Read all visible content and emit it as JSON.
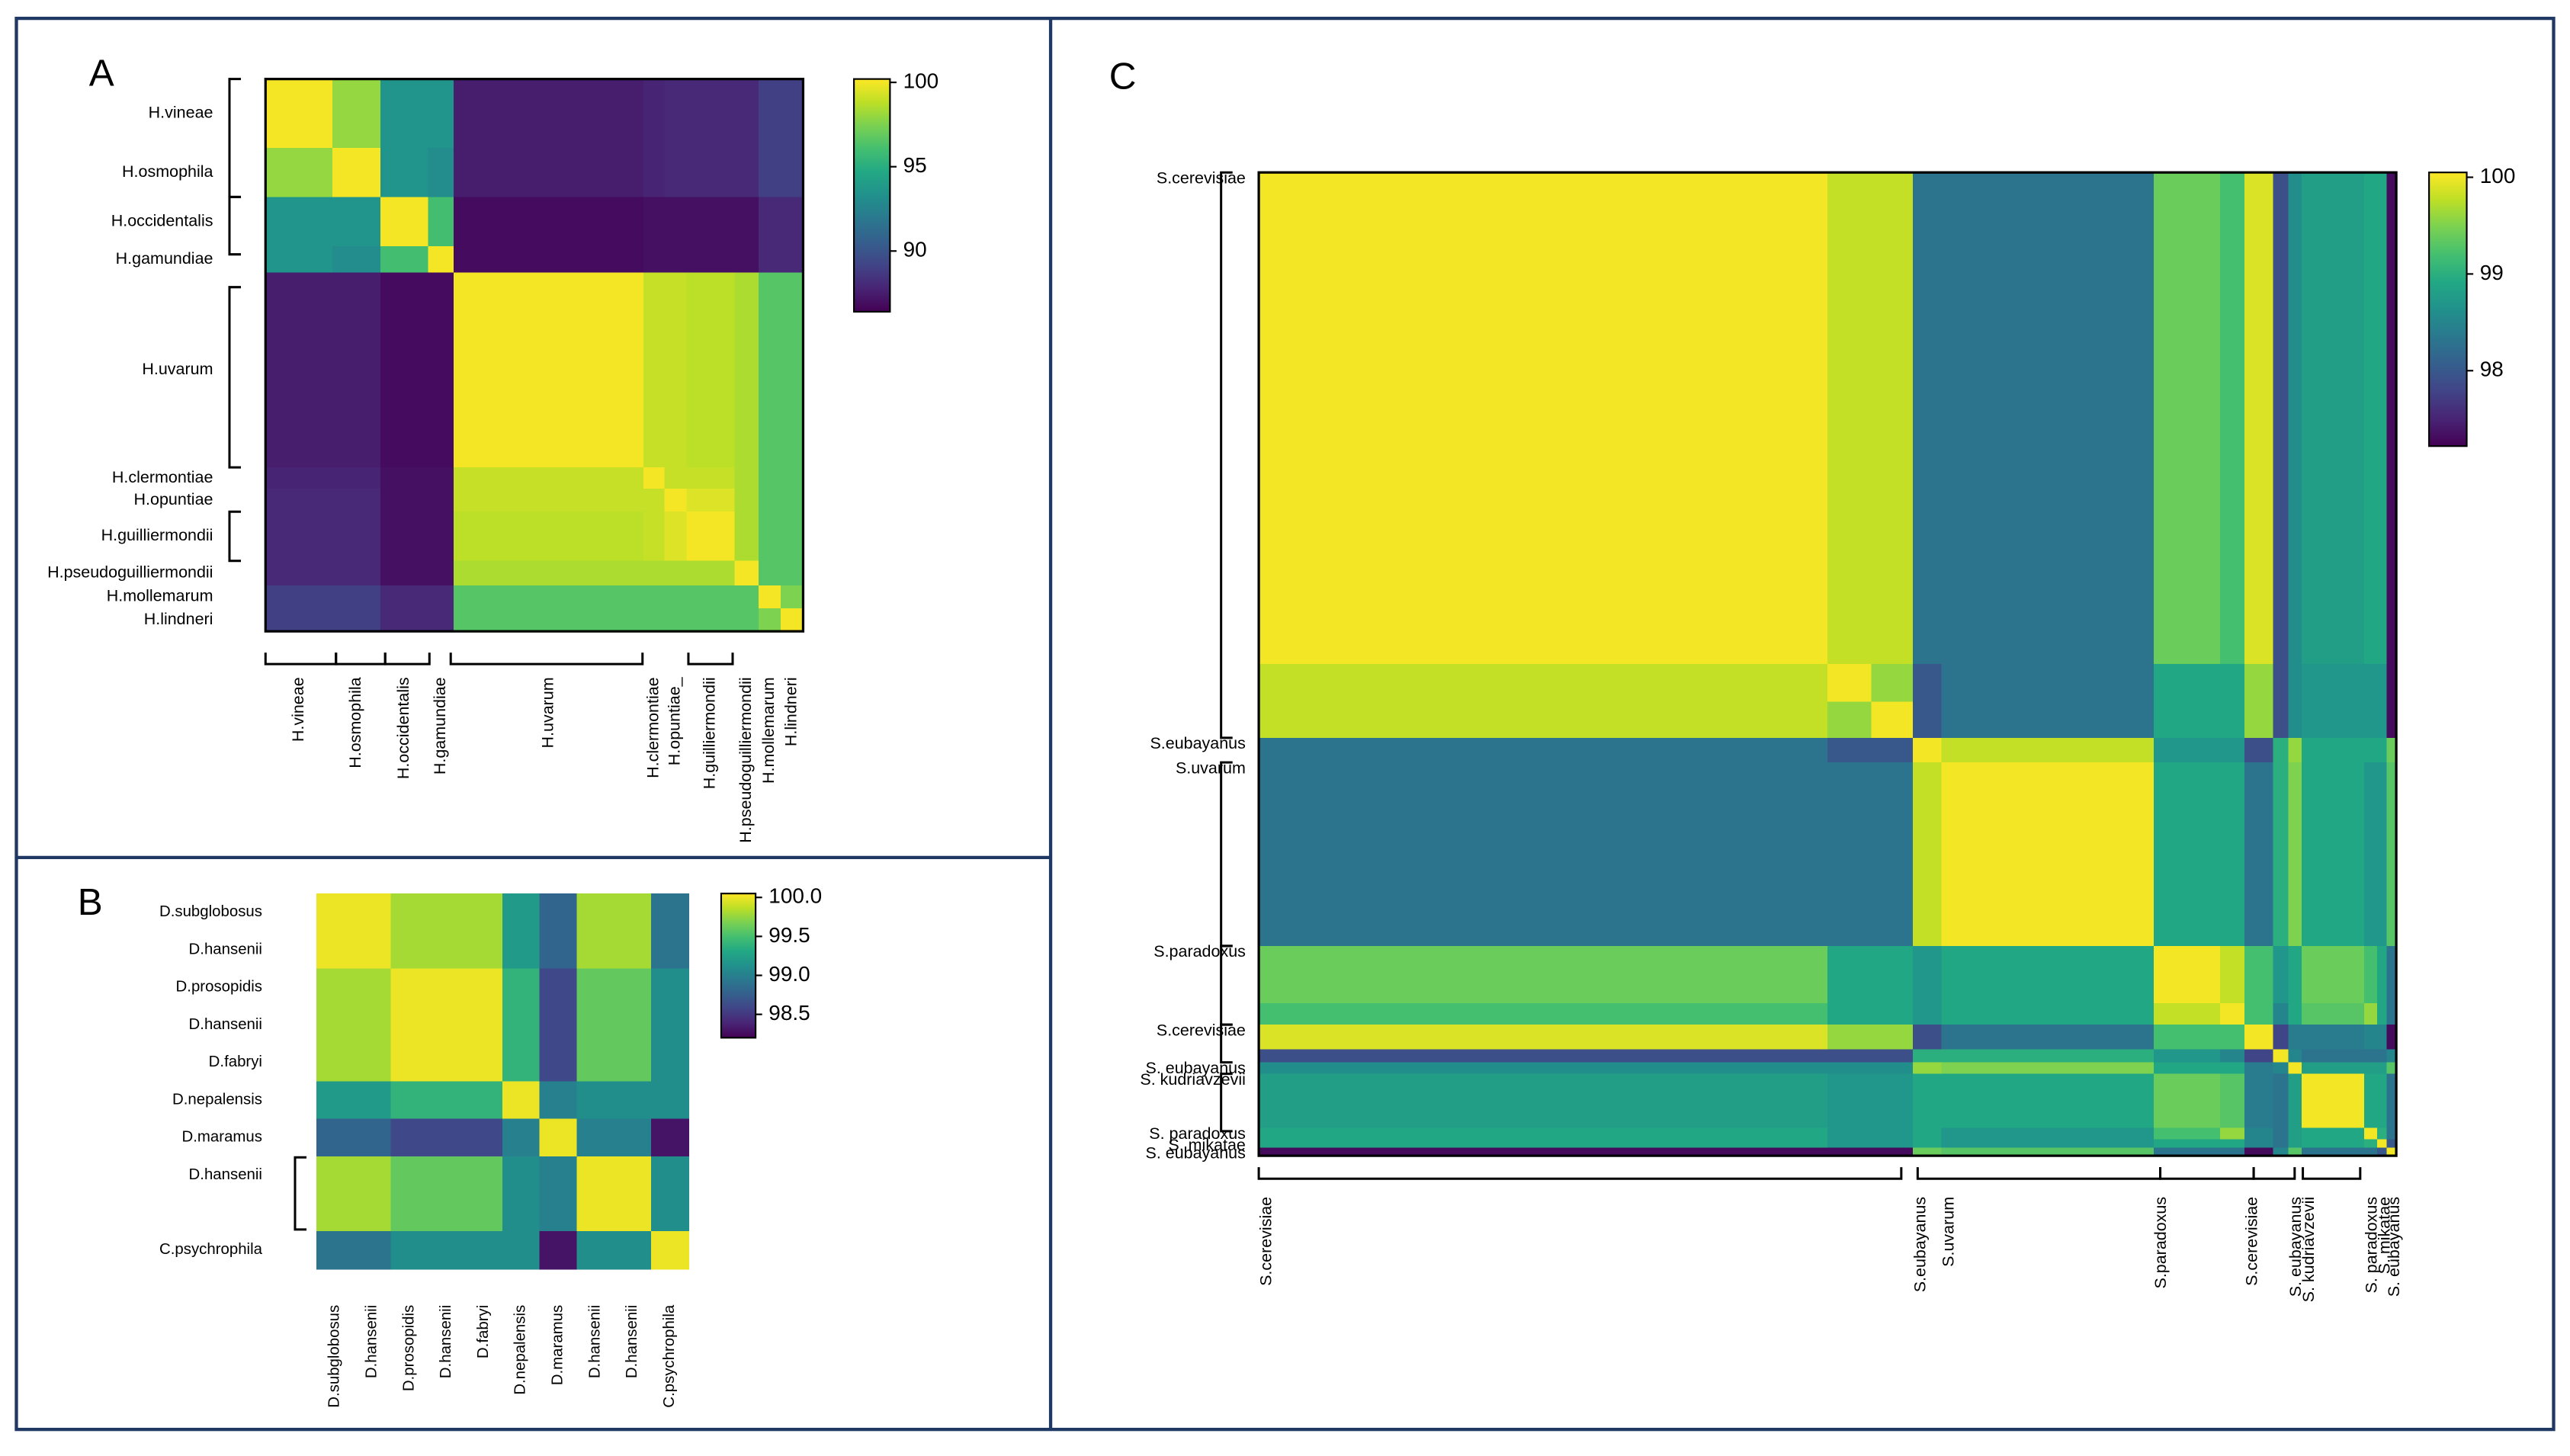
{
  "chart_data": [
    {
      "type": "heatmap",
      "label": "A",
      "colormap": "viridis",
      "y_categories": [
        "H.vineae",
        "H.osmophila",
        "H.occidentalis",
        "H.gamundiae",
        "H.uvarum",
        "H.clermontiae",
        "H.opuntiae",
        "H.guilliermondii",
        "H.pseudoguilliermondii",
        "H.mollemarum",
        "H.lindneri"
      ],
      "x_categories": [
        "H.vineae",
        "H.osmophila",
        "H.occidentalis",
        "H.gamundiae",
        "H.uvarum",
        "H.clermontiae",
        "H.opuntiae_",
        "H.guilliermondii",
        "H.pseudoguilliermondii",
        "H.mollemarum",
        "H.lindneri"
      ],
      "values": [
        [
          100,
          98,
          93.5,
          93.5,
          87.5,
          87.8,
          88,
          88,
          88,
          89,
          89
        ],
        [
          98,
          100,
          93.5,
          93,
          87.5,
          87.8,
          88,
          88,
          88,
          89,
          89
        ],
        [
          93.5,
          93.5,
          100,
          96,
          86.8,
          87,
          87,
          87,
          87,
          88,
          88
        ],
        [
          93.5,
          93,
          96,
          100,
          86.8,
          87,
          87,
          87,
          87,
          88,
          88
        ],
        [
          87.5,
          87.5,
          86.8,
          86.8,
          100,
          99,
          99,
          98.8,
          98.5,
          96.5,
          96.5
        ],
        [
          87.8,
          87.8,
          87,
          87,
          99,
          100,
          99,
          99,
          98.5,
          96.5,
          96.5
        ],
        [
          88,
          88,
          87,
          87,
          99,
          99,
          100,
          99.5,
          98.5,
          96.5,
          96.5
        ],
        [
          88,
          88,
          87,
          87,
          98.8,
          99,
          99.5,
          100,
          98.5,
          96.5,
          96.5
        ],
        [
          88,
          88,
          87,
          87,
          98.5,
          98.5,
          98.5,
          98.5,
          100,
          96.5,
          96.5
        ],
        [
          89,
          89,
          88,
          88,
          96.5,
          96.5,
          96.5,
          96.5,
          96.5,
          100,
          97.5
        ],
        [
          89,
          89,
          88,
          88,
          96.5,
          96.5,
          96.5,
          96.5,
          96.5,
          97.5,
          100
        ]
      ],
      "colorbar": {
        "lim": [
          86.4,
          100.2
        ],
        "ticks": [
          100,
          95,
          90
        ]
      }
    },
    {
      "type": "heatmap",
      "label": "B",
      "colormap": "viridis",
      "y_categories": [
        "D.subglobosus",
        "D.hansenii",
        "D.prosopidis",
        "D.hansenii",
        "D.fabryi",
        "D.nepalensis",
        "D.maramus",
        "D.hansenii",
        null,
        "C.psychrophila"
      ],
      "x_categories": [
        "D.subglobosus",
        "D.hansenii",
        "D.prosopidis",
        "D.hansenii",
        "D.fabryi",
        "D.nepalensis",
        "D.maramus",
        "D.hansenii",
        "D.hansenii",
        "C.psychrophila"
      ],
      "values": [
        [
          100,
          100,
          99.8,
          99.8,
          99.8,
          99.2,
          98.8,
          99.8,
          99.8,
          98.9
        ],
        [
          100,
          100,
          99.8,
          99.8,
          99.8,
          99.2,
          98.8,
          99.8,
          99.8,
          98.9
        ],
        [
          99.8,
          99.8,
          100,
          100,
          100,
          99.4,
          98.6,
          99.6,
          99.6,
          99.1
        ],
        [
          99.8,
          99.8,
          100,
          100,
          100,
          99.4,
          98.6,
          99.6,
          99.6,
          99.1
        ],
        [
          99.8,
          99.8,
          100,
          100,
          100,
          99.4,
          98.6,
          99.6,
          99.6,
          99.1
        ],
        [
          99.2,
          99.2,
          99.4,
          99.4,
          99.4,
          100,
          99.0,
          99.1,
          99.1,
          99.1
        ],
        [
          98.8,
          98.8,
          98.6,
          98.6,
          98.6,
          99.0,
          100,
          99.0,
          99.0,
          98.3
        ],
        [
          99.8,
          99.8,
          99.6,
          99.6,
          99.6,
          99.1,
          99.0,
          100,
          100,
          99.1
        ],
        [
          99.8,
          99.8,
          99.6,
          99.6,
          99.6,
          99.1,
          99.0,
          100,
          100,
          99.1
        ],
        [
          98.9,
          98.9,
          99.1,
          99.1,
          99.1,
          99.1,
          98.3,
          99.1,
          99.1,
          100
        ]
      ],
      "colorbar": {
        "lim": [
          98.2,
          100.05
        ],
        "ticks": [
          {
            "value": 100,
            "label": "100.0"
          },
          99.5,
          {
            "value": 99,
            "label": "99.0"
          },
          98.5
        ]
      }
    },
    {
      "type": "heatmap",
      "label": "C",
      "colormap": "viridis",
      "y_categories": [
        "S.cerevisiae",
        null,
        null,
        "S.eubayanus",
        "S.uvarum",
        "S.paradoxus",
        null,
        "S.cerevisiae",
        null,
        "S. eubayanus",
        "S. kudriavzevii",
        "S. paradoxus",
        "S. mikatae",
        "S. eubayanus"
      ],
      "x_categories": [
        "S.cerevisiae",
        null,
        null,
        "S.eubayanus",
        "S.uvarum",
        "S.paradoxus",
        null,
        "S.cerevisiae",
        null,
        "S. eubayanus",
        "S. kudriavzevii",
        "S. paradoxus",
        "S. mikatae",
        "S. eubayanus"
      ],
      "values": [
        [
          100,
          99.8,
          99.8,
          98.3,
          98.3,
          99.4,
          99.2,
          99.9,
          97.9,
          98.6,
          98.8,
          98.9,
          98.9,
          97.3
        ],
        [
          99.8,
          100,
          99.6,
          98.0,
          98.3,
          98.9,
          98.9,
          99.6,
          97.9,
          98.6,
          98.7,
          98.7,
          98.7,
          97.3
        ],
        [
          99.8,
          99.6,
          100,
          98.0,
          98.3,
          98.9,
          98.9,
          99.6,
          97.9,
          98.6,
          98.7,
          98.7,
          98.7,
          97.3
        ],
        [
          98.3,
          98.0,
          98.0,
          100,
          99.8,
          98.7,
          98.7,
          97.9,
          99.0,
          99.6,
          98.9,
          98.9,
          98.9,
          99.4
        ],
        [
          98.3,
          98.3,
          98.3,
          99.8,
          100,
          98.9,
          98.9,
          98.3,
          99.0,
          99.5,
          98.9,
          98.7,
          98.7,
          99.3
        ],
        [
          99.4,
          98.9,
          98.9,
          98.7,
          98.9,
          100,
          99.8,
          99.2,
          98.7,
          98.9,
          99.4,
          99.2,
          98.9,
          98.3
        ],
        [
          99.2,
          98.9,
          98.9,
          98.7,
          98.9,
          99.8,
          100,
          99.2,
          98.5,
          98.9,
          99.3,
          99.6,
          98.9,
          98.3
        ],
        [
          99.9,
          99.6,
          99.6,
          97.9,
          98.3,
          99.2,
          99.2,
          100,
          97.8,
          98.4,
          98.4,
          98.5,
          98.5,
          97.3
        ],
        [
          97.9,
          97.9,
          97.9,
          99.0,
          99.0,
          98.7,
          98.5,
          97.8,
          100,
          98.5,
          98.3,
          98.3,
          98.3,
          98.5
        ],
        [
          98.6,
          98.6,
          98.6,
          99.6,
          99.5,
          98.9,
          98.9,
          98.4,
          98.5,
          100,
          98.8,
          98.8,
          98.8,
          99.3
        ],
        [
          98.8,
          98.7,
          98.7,
          98.9,
          98.9,
          99.4,
          99.3,
          98.4,
          98.3,
          98.8,
          100,
          98.9,
          98.9,
          98.3
        ],
        [
          98.9,
          98.7,
          98.7,
          98.9,
          98.7,
          99.2,
          99.6,
          98.5,
          98.3,
          98.8,
          98.9,
          100,
          99.0,
          98.3
        ],
        [
          98.9,
          98.7,
          98.7,
          98.9,
          98.7,
          98.9,
          98.9,
          98.5,
          98.3,
          98.8,
          98.9,
          99.0,
          100,
          98.0
        ],
        [
          97.3,
          97.3,
          97.3,
          99.4,
          99.3,
          98.3,
          98.3,
          97.3,
          98.5,
          99.3,
          98.3,
          98.3,
          98.0,
          100
        ]
      ],
      "colorbar": {
        "lim": [
          97.22,
          100.05
        ],
        "ticks": [
          100,
          99,
          98
        ]
      }
    }
  ]
}
